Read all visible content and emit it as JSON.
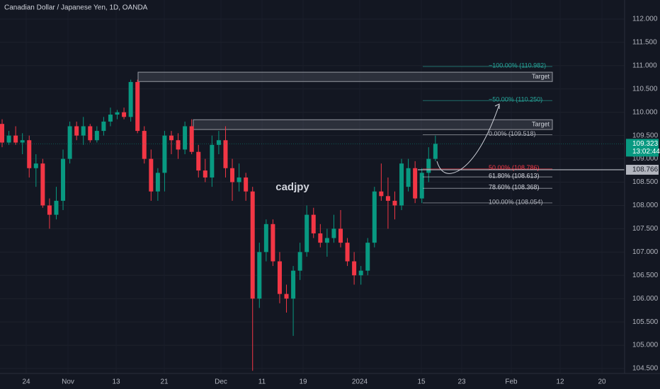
{
  "chart_data": {
    "type": "candlestick",
    "title": "Canadian Dollar / Japanese Yen, 1D, OANDA",
    "watermark": "cadjpy",
    "up_color": "#089981",
    "down_color": "#f23645",
    "ylim": [
      104.4,
      112.2
    ],
    "yticks": [
      {
        "value": 104.5,
        "label": "104.500"
      },
      {
        "value": 105,
        "label": "105.000"
      },
      {
        "value": 105.5,
        "label": "105.500"
      },
      {
        "value": 106,
        "label": "106.000"
      },
      {
        "value": 106.5,
        "label": "106.500"
      },
      {
        "value": 107,
        "label": "107.000"
      },
      {
        "value": 107.5,
        "label": "107.500"
      },
      {
        "value": 108,
        "label": "108.000"
      },
      {
        "value": 108.5,
        "label": "108.500"
      },
      {
        "value": 109,
        "label": "109.000"
      },
      {
        "value": 109.5,
        "label": "109.500"
      },
      {
        "value": 110,
        "label": "110.000"
      },
      {
        "value": 110.5,
        "label": "110.500"
      },
      {
        "value": 111,
        "label": "111.000"
      },
      {
        "value": 111.5,
        "label": "111.500"
      },
      {
        "value": 112,
        "label": "112.000"
      }
    ],
    "xtick_labels": [
      "24",
      "Nov",
      "13",
      "21",
      "Dec",
      "11",
      "19",
      "2024",
      "15",
      "23",
      "Feb",
      "12",
      "20"
    ],
    "ohlc": [
      [
        109.75,
        109.85,
        109.25,
        109.35
      ],
      [
        109.35,
        109.6,
        109.3,
        109.5
      ],
      [
        109.5,
        109.7,
        109.3,
        109.35
      ],
      [
        109.35,
        109.55,
        109.1,
        109.4
      ],
      [
        109.4,
        109.5,
        108.6,
        108.8
      ],
      [
        108.8,
        109.1,
        108.4,
        108.9
      ],
      [
        108.9,
        109.0,
        107.95,
        108.0
      ],
      [
        108.0,
        108.15,
        107.5,
        107.8
      ],
      [
        107.8,
        108.4,
        107.7,
        108.1
      ],
      [
        108.1,
        109.2,
        107.9,
        109.0
      ],
      [
        109.0,
        109.8,
        108.9,
        109.7
      ],
      [
        109.7,
        109.8,
        109.4,
        109.5
      ],
      [
        109.5,
        109.9,
        109.3,
        109.7
      ],
      [
        109.7,
        109.75,
        109.35,
        109.4
      ],
      [
        109.4,
        109.7,
        109.35,
        109.6
      ],
      [
        109.6,
        109.9,
        109.5,
        109.8
      ],
      [
        109.8,
        110.1,
        109.7,
        109.95
      ],
      [
        109.95,
        110.05,
        109.85,
        110.0
      ],
      [
        110.0,
        110.1,
        109.85,
        109.9
      ],
      [
        109.9,
        110.7,
        109.8,
        110.65
      ],
      [
        110.65,
        110.7,
        109.55,
        109.6
      ],
      [
        109.6,
        109.7,
        108.9,
        109.0
      ],
      [
        109.0,
        109.2,
        108.1,
        108.3
      ],
      [
        108.3,
        108.8,
        108.1,
        108.7
      ],
      [
        108.7,
        109.6,
        108.3,
        109.5
      ],
      [
        109.5,
        109.6,
        109.1,
        109.4
      ],
      [
        109.4,
        109.55,
        109.0,
        109.2
      ],
      [
        109.2,
        109.8,
        109.1,
        109.7
      ],
      [
        109.7,
        109.85,
        109.1,
        109.15
      ],
      [
        109.15,
        109.3,
        108.6,
        108.75
      ],
      [
        108.75,
        109.0,
        108.5,
        108.6
      ],
      [
        108.6,
        109.5,
        108.4,
        109.3
      ],
      [
        109.3,
        109.6,
        109.1,
        109.4
      ],
      [
        109.4,
        109.7,
        108.6,
        108.8
      ],
      [
        108.8,
        109.0,
        108.1,
        108.5
      ],
      [
        108.5,
        108.9,
        108.3,
        108.6
      ],
      [
        108.6,
        108.7,
        108.1,
        108.3
      ],
      [
        108.3,
        108.4,
        104.45,
        106.0
      ],
      [
        106.0,
        107.2,
        105.8,
        107.0
      ],
      [
        107.0,
        107.7,
        106.8,
        107.6
      ],
      [
        107.6,
        107.7,
        106.7,
        106.8
      ],
      [
        106.8,
        107.0,
        105.9,
        106.1
      ],
      [
        106.1,
        106.3,
        105.7,
        106.0
      ],
      [
        106.0,
        106.7,
        105.2,
        106.6
      ],
      [
        106.6,
        107.2,
        106.4,
        107.0
      ],
      [
        107.0,
        108.0,
        106.9,
        107.8
      ],
      [
        107.8,
        107.95,
        107.3,
        107.4
      ],
      [
        107.4,
        107.6,
        107.1,
        107.2
      ],
      [
        107.2,
        107.5,
        106.9,
        107.3
      ],
      [
        107.3,
        107.8,
        107.2,
        107.5
      ],
      [
        107.5,
        107.9,
        107.1,
        107.2
      ],
      [
        107.2,
        107.3,
        106.7,
        106.8
      ],
      [
        106.8,
        107.0,
        106.3,
        106.5
      ],
      [
        106.5,
        106.7,
        106.3,
        106.6
      ],
      [
        106.6,
        107.3,
        106.5,
        107.2
      ],
      [
        107.2,
        108.4,
        107.1,
        108.3
      ],
      [
        108.3,
        108.9,
        108.1,
        108.2
      ],
      [
        108.2,
        108.6,
        107.5,
        108.1
      ],
      [
        108.1,
        108.3,
        107.7,
        108.0
      ],
      [
        108.0,
        109.0,
        107.9,
        108.9
      ],
      [
        108.4,
        109.0,
        108.3,
        108.8
      ],
      [
        108.8,
        108.95,
        108.05,
        108.15
      ],
      [
        108.15,
        108.8,
        108.05,
        108.7
      ],
      [
        108.7,
        109.25,
        108.5,
        109.0
      ],
      [
        109.0,
        109.5,
        108.95,
        109.323
      ]
    ],
    "fib_levels": [
      {
        "label": "−100.00% (110.982)",
        "value": 110.982,
        "color": "#26a69a"
      },
      {
        "label": "−50.00% (110.250)",
        "value": 110.25,
        "color": "#26a69a"
      },
      {
        "label": "0.00% (109.518)",
        "value": 109.518,
        "color": "#b2b5be"
      },
      {
        "label": "50.00% (108.786)",
        "value": 108.786,
        "color": "#f23645"
      },
      {
        "label": "61.80% (108.613)",
        "value": 108.613,
        "color": "#d1d4dc"
      },
      {
        "label": "78.60% (108.368)",
        "value": 108.368,
        "color": "#d1d4dc"
      },
      {
        "label": "100.00% (108.054)",
        "value": 108.054,
        "color": "#b2b5be"
      }
    ],
    "targets": [
      {
        "label": "Target",
        "top": 110.86,
        "bottom": 110.66
      },
      {
        "label": "Target",
        "top": 109.84,
        "bottom": 109.63
      }
    ],
    "last_price": {
      "value": 109.323,
      "label": "109.323",
      "countdown": "13:02:44"
    },
    "crosshair": {
      "value": 108.766,
      "label": "108.766"
    }
  }
}
